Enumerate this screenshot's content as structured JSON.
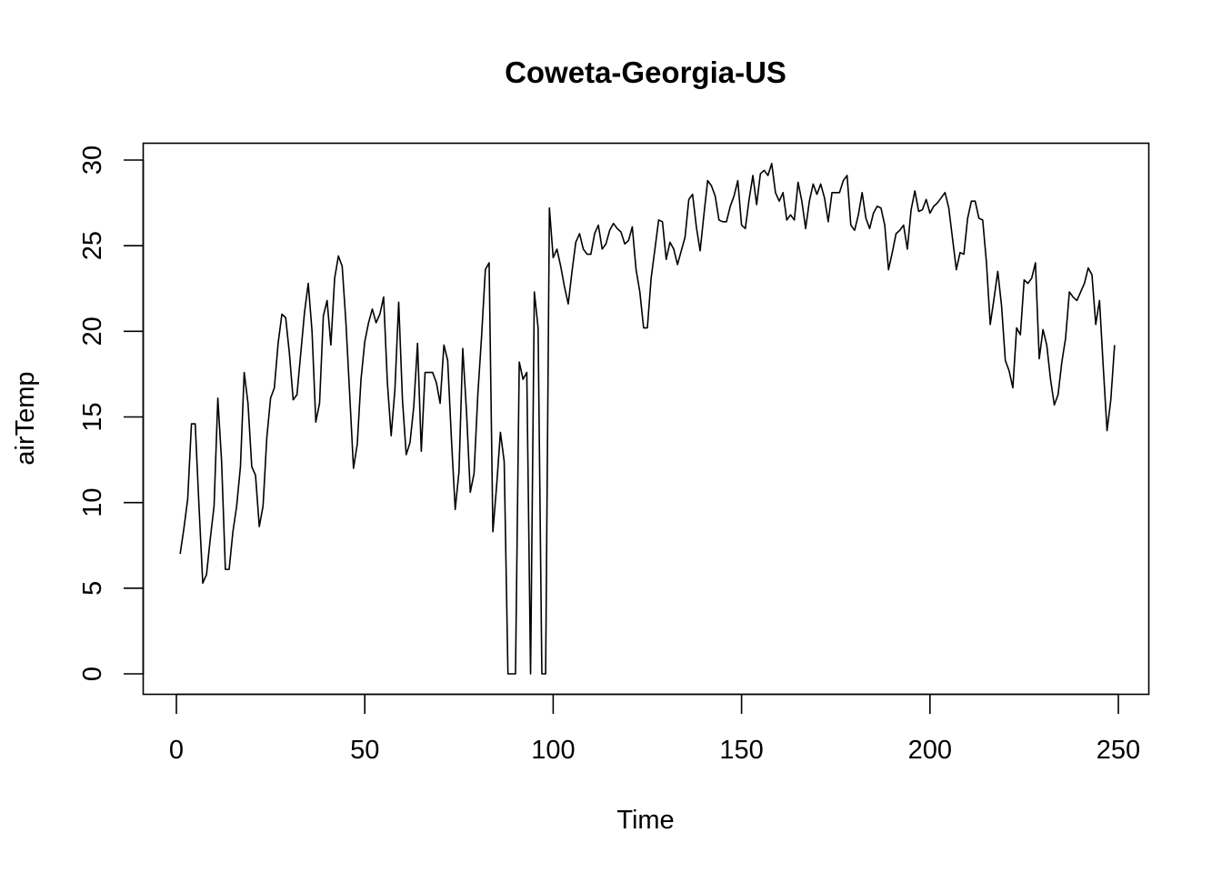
{
  "chart_data": {
    "type": "line",
    "title": "Coweta-Georgia-US",
    "xlabel": "Time",
    "ylabel": "airTemp",
    "xlim": [
      1,
      248
    ],
    "ylim": [
      0,
      30
    ],
    "x_ticks": [
      0,
      50,
      100,
      150,
      200,
      250
    ],
    "y_ticks": [
      0,
      5,
      10,
      15,
      20,
      25,
      30
    ],
    "grid": false,
    "legend": "none",
    "series": [
      {
        "x_start": 1,
        "values": [
          7.0,
          8.5,
          10.2,
          14.6,
          14.6,
          9.8,
          5.3,
          5.8,
          7.9,
          9.8,
          16.1,
          12.4,
          6.1,
          6.1,
          8.3,
          9.8,
          12.1,
          17.6,
          15.8,
          12.1,
          11.6,
          8.6,
          9.8,
          13.8,
          16.1,
          16.7,
          19.3,
          21.0,
          20.8,
          18.7,
          16.0,
          16.3,
          18.7,
          21.1,
          22.8,
          20.0,
          14.7,
          15.8,
          20.9,
          21.8,
          19.2,
          23.1,
          24.4,
          23.8,
          20.5,
          16.3,
          12.0,
          13.4,
          17.2,
          19.4,
          20.5,
          21.3,
          20.5,
          21.0,
          22.0,
          17.0,
          13.9,
          16.6,
          21.7,
          16.0,
          12.8,
          13.5,
          15.6,
          19.3,
          13.0,
          17.6,
          17.6,
          17.6,
          17.0,
          15.8,
          19.2,
          18.3,
          13.7,
          9.6,
          11.8,
          19.0,
          15.3,
          10.6,
          11.7,
          16.3,
          19.7,
          23.6,
          24.0,
          8.3,
          11.0,
          14.1,
          12.4,
          0.0,
          0.0,
          0.0,
          18.2,
          17.2,
          17.6,
          0.0,
          22.3,
          20.2,
          0.0,
          0.0,
          27.2,
          24.3,
          24.8,
          23.8,
          22.6,
          21.6,
          23.5,
          25.2,
          25.7,
          24.8,
          24.5,
          24.5,
          25.7,
          26.2,
          24.8,
          25.1,
          25.9,
          26.3,
          26.0,
          25.8,
          25.1,
          25.3,
          26.1,
          23.6,
          22.3,
          20.2,
          20.2,
          23.1,
          24.8,
          26.5,
          26.4,
          24.2,
          25.2,
          24.8,
          23.9,
          24.7,
          25.5,
          27.7,
          28.0,
          26.1,
          24.7,
          26.8,
          28.8,
          28.5,
          27.9,
          26.5,
          26.4,
          26.4,
          27.3,
          27.9,
          28.8,
          26.2,
          26.0,
          27.7,
          29.1,
          27.4,
          29.2,
          29.4,
          29.1,
          29.8,
          28.1,
          27.6,
          28.1,
          26.5,
          26.8,
          26.5,
          28.7,
          27.6,
          26.0,
          27.6,
          28.6,
          28.0,
          28.6,
          27.8,
          26.4,
          28.1,
          28.1,
          28.1,
          28.8,
          29.1,
          26.2,
          25.9,
          26.8,
          28.1,
          26.6,
          26.0,
          26.9,
          27.3,
          27.2,
          26.2,
          23.6,
          24.6,
          25.7,
          25.9,
          26.2,
          24.8,
          27.1,
          28.2,
          27.0,
          27.1,
          27.7,
          26.9,
          27.3,
          27.5,
          27.8,
          28.1,
          27.2,
          25.4,
          23.6,
          24.6,
          24.5,
          26.6,
          27.6,
          27.6,
          26.6,
          26.5,
          24.0,
          20.4,
          21.9,
          23.5,
          21.5,
          18.3,
          17.7,
          16.7,
          20.2,
          19.8,
          23.0,
          22.8,
          23.1,
          24.0,
          18.4,
          20.1,
          19.2,
          17.2,
          15.7,
          16.3,
          18.2,
          19.6,
          22.3,
          22.0,
          21.8,
          22.3,
          22.8,
          23.7,
          23.3,
          20.4,
          21.8,
          17.9,
          14.2,
          16.0,
          19.2
        ]
      }
    ]
  }
}
